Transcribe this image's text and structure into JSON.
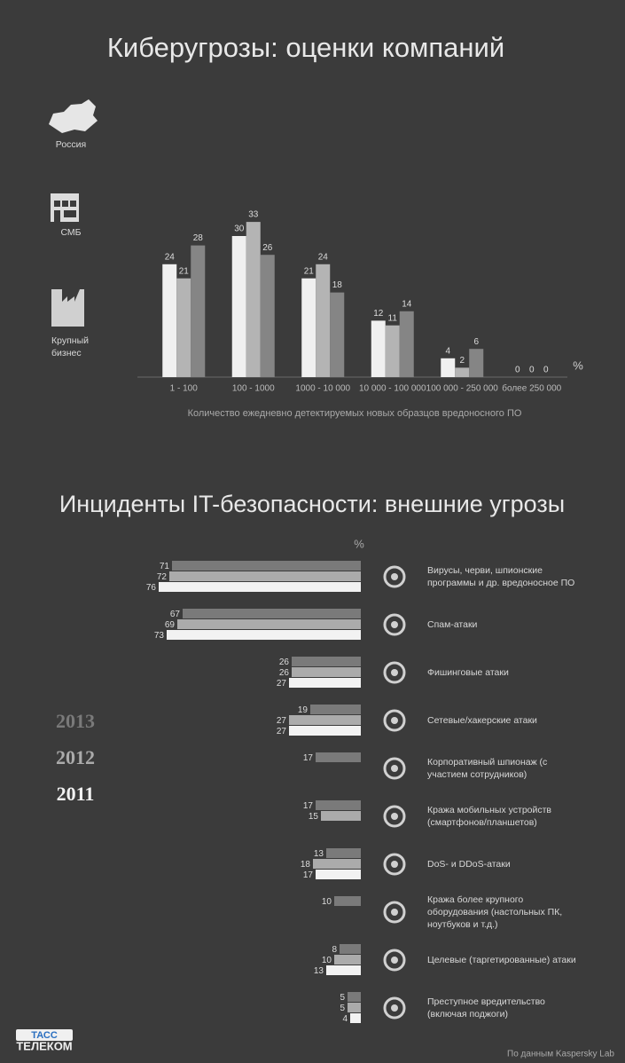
{
  "chart_data": [
    {
      "type": "bar",
      "title": "Киберугрозы: оценки компаний",
      "unit": "%",
      "xlabel": "Количество ежедневно детектируемых новых образцов вредоносного ПО",
      "categories": [
        "1 - 100",
        "100 - 1000",
        "1000 - 10 000",
        "10 000 - 100 000",
        "100 000 - 250 000",
        "более 250 000"
      ],
      "series": [
        {
          "name": "Россия",
          "color": "#f0f0f0",
          "values": [
            24,
            30,
            21,
            12,
            4,
            0
          ]
        },
        {
          "name": "СМБ",
          "color": "#b4b4b4",
          "values": [
            21,
            33,
            24,
            11,
            2,
            0
          ]
        },
        {
          "name": "Крупный бизнес",
          "color": "#858585",
          "values": [
            28,
            26,
            18,
            14,
            6,
            0
          ]
        }
      ]
    },
    {
      "type": "barh",
      "title": "Инциденты IT-безопасности: внешние угрозы",
      "unit": "%",
      "categories": [
        "Вирусы, черви, шпионские программы и др. вредоносное ПО",
        "Спам-атаки",
        "Фишинговые атаки",
        "Сетевые/хакерские атаки",
        "Корпоративный шпионаж (с участием сотрудников)",
        "Кража мобильных устройств (смартфонов/планшетов)",
        "DoS- и DDoS-атаки",
        "Кража более крупного оборудования (настольных ПК, ноутбуков и т.д.)",
        "Целевые (таргетированные) атаки",
        "Преступное вредительство (включая поджоги)"
      ],
      "series": [
        {
          "name": "2013",
          "color": "#7a7a7a",
          "values": [
            71,
            67,
            26,
            19,
            17,
            17,
            13,
            10,
            8,
            5
          ]
        },
        {
          "name": "2012",
          "color": "#ababab",
          "values": [
            72,
            69,
            26,
            27,
            null,
            15,
            18,
            null,
            10,
            5
          ]
        },
        {
          "name": "2011",
          "color": "#f2f2f2",
          "values": [
            76,
            73,
            27,
            27,
            null,
            null,
            17,
            null,
            13,
            4
          ]
        }
      ]
    }
  ],
  "footer": {
    "source": "По данным Kaspersky Lab",
    "logo_top": "ТАСС",
    "logo_bottom": "ТЕЛЕКОМ"
  }
}
